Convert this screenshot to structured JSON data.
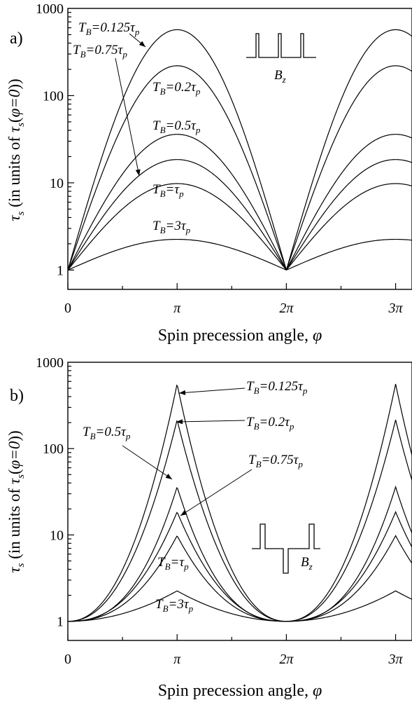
{
  "chart_data": [
    {
      "type": "line",
      "panel_label": "a)",
      "xlabel": "Spin precession angle, φ",
      "ylabel": "τs (in units of τs(φ=0))",
      "y_scale": "log",
      "ylim": [
        0.6,
        1000
      ],
      "xlim": [
        0,
        3.15
      ],
      "x_unit": "π",
      "x_ticks": [
        {
          "value": 0,
          "label": "0"
        },
        {
          "value": 1,
          "label": "π"
        },
        {
          "value": 2,
          "label": "2π"
        },
        {
          "value": 3,
          "label": "3π"
        }
      ],
      "y_ticks": [
        {
          "value": 1,
          "label": "1"
        },
        {
          "value": 10,
          "label": "10"
        },
        {
          "value": 100,
          "label": "100"
        },
        {
          "value": 1000,
          "label": "1000"
        }
      ],
      "pulse_label": "Bz",
      "curve_shape": "broad",
      "series": [
        {
          "name": "TB=0.125τp",
          "peak": 570
        },
        {
          "name": "TB=0.2τp",
          "peak": 220
        },
        {
          "name": "TB=0.5τp",
          "peak": 36
        },
        {
          "name": "TB=0.75τp",
          "peak": 18.5
        },
        {
          "name": "TB=τp",
          "peak": 9.8
        },
        {
          "name": "TB=3τp",
          "peak": 2.25
        }
      ],
      "annotations": [
        {
          "text": "TB=0.125τp",
          "base": "T",
          "sub": "B",
          "rest": "=0.125τ",
          "sub2": "p"
        },
        {
          "text": "TB=0.75τp",
          "base": "T",
          "sub": "B",
          "rest": "=0.75τ",
          "sub2": "p"
        },
        {
          "text": "TB=0.2τp",
          "base": "T",
          "sub": "B",
          "rest": "=0.2τ",
          "sub2": "p"
        },
        {
          "text": "TB=0.5τp",
          "base": "T",
          "sub": "B",
          "rest": "=0.5τ",
          "sub2": "p"
        },
        {
          "text": "TB=τp",
          "base": "T",
          "sub": "B",
          "rest": "=τ",
          "sub2": "p"
        },
        {
          "text": "TB=3τp",
          "base": "T",
          "sub": "B",
          "rest": "=3τ",
          "sub2": "p"
        }
      ]
    },
    {
      "type": "line",
      "panel_label": "b)",
      "xlabel": "Spin precession angle, φ",
      "ylabel": "τs (in units of τs(φ=0))",
      "y_scale": "log",
      "ylim": [
        0.6,
        1000
      ],
      "xlim": [
        0,
        3.15
      ],
      "x_unit": "π",
      "x_ticks": [
        {
          "value": 0,
          "label": "0"
        },
        {
          "value": 1,
          "label": "π"
        },
        {
          "value": 2,
          "label": "2π"
        },
        {
          "value": 3,
          "label": "3π"
        }
      ],
      "y_ticks": [
        {
          "value": 1,
          "label": "1"
        },
        {
          "value": 10,
          "label": "10"
        },
        {
          "value": 100,
          "label": "100"
        },
        {
          "value": 1000,
          "label": "1000"
        }
      ],
      "pulse_label": "Bz",
      "curve_shape": "cusp",
      "series": [
        {
          "name": "TB=0.125τp",
          "peak": 560
        },
        {
          "name": "TB=0.2τp",
          "peak": 215
        },
        {
          "name": "TB=0.5τp",
          "peak": 36
        },
        {
          "name": "TB=0.75τp",
          "peak": 18.5
        },
        {
          "name": "TB=τp",
          "peak": 9.8
        },
        {
          "name": "TB=3τp",
          "peak": 2.25
        }
      ],
      "annotations": [
        {
          "text": "TB=0.125τp",
          "base": "T",
          "sub": "B",
          "rest": "=0.125τ",
          "sub2": "p"
        },
        {
          "text": "TB=0.2τp",
          "base": "T",
          "sub": "B",
          "rest": "=0.2τ",
          "sub2": "p"
        },
        {
          "text": "TB=0.5τp",
          "base": "T",
          "sub": "B",
          "rest": "=0.5τ",
          "sub2": "p"
        },
        {
          "text": "TB=0.75τp",
          "base": "T",
          "sub": "B",
          "rest": "=0.75τ",
          "sub2": "p"
        },
        {
          "text": "TB=τp",
          "base": "T",
          "sub": "B",
          "rest": "=τ",
          "sub2": "p"
        },
        {
          "text": "TB=3τp",
          "base": "T",
          "sub": "B",
          "rest": "=3τ",
          "sub2": "p"
        }
      ]
    }
  ]
}
